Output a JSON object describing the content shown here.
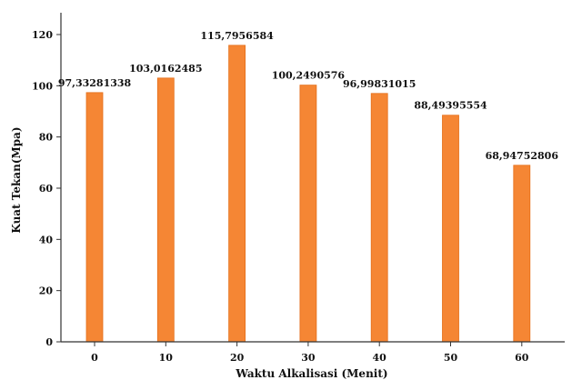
{
  "chart_data": {
    "type": "bar",
    "title": "",
    "xlabel": "Waktu Alkalisasi (Menit)",
    "ylabel": "Kuat Tekan(Mpa)",
    "categories": [
      "0",
      "10",
      "20",
      "30",
      "40",
      "50",
      "60"
    ],
    "values": [
      97.33281338,
      103.0162485,
      115.7956584,
      100.2490576,
      96.99831015,
      88.49395554,
      68.94752806
    ],
    "value_labels": [
      "97,33281338",
      "103,0162485",
      "115,7956584",
      "100,2490576",
      "96,99831015",
      "88,49395554",
      "68,94752806"
    ],
    "y_ticks": [
      0,
      20,
      40,
      60,
      80,
      100,
      120
    ],
    "ylim": [
      0,
      120
    ],
    "grid": false,
    "legend": "none",
    "bar_color": "#f58634",
    "bar_stroke_color": "#e46f1a",
    "axis_color": "#333333"
  }
}
